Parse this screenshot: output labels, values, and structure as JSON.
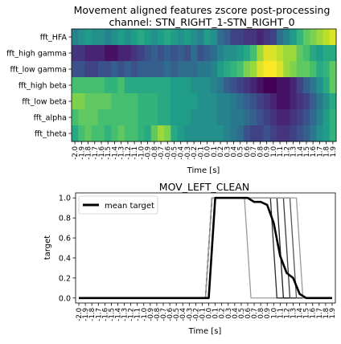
{
  "chart_data": [
    {
      "type": "heatmap",
      "title": "Movement aligned features zscore post-processing",
      "subtitle": "channel: STN_RIGHT_1-STN_RIGHT_0",
      "xlabel": "Time [s]",
      "ylabel": "",
      "rows": [
        "fft_HFA",
        "fft_high gamma",
        "fft_low gamma",
        "fft_high beta",
        "fft_low beta",
        "fft_alpha",
        "fft_theta"
      ],
      "x": [
        -2.0,
        -1.9,
        -1.8,
        -1.7,
        -1.6,
        -1.5,
        -1.4,
        -1.3,
        -1.2,
        -1.1,
        -1.0,
        -0.9,
        -0.8,
        -0.7,
        -0.6,
        -0.5,
        -0.4,
        -0.3,
        -0.2,
        -0.1,
        0.0,
        0.1,
        0.2,
        0.3,
        0.4,
        0.5,
        0.6,
        0.7,
        0.8,
        0.9,
        1.0,
        1.1,
        1.2,
        1.3,
        1.4,
        1.5,
        1.6,
        1.7,
        1.8,
        1.9
      ],
      "colormap": "viridis",
      "colorscale": [
        "#440154",
        "#482878",
        "#3e4989",
        "#31688e",
        "#26828e",
        "#1f9e89",
        "#35b779",
        "#6ece58",
        "#b5de2b",
        "#fde725"
      ],
      "values": [
        [
          0.45,
          0.5,
          0.55,
          0.5,
          0.5,
          0.45,
          0.5,
          0.55,
          0.5,
          0.55,
          0.6,
          0.55,
          0.5,
          0.55,
          0.6,
          0.55,
          0.5,
          0.55,
          0.5,
          0.45,
          0.55,
          0.5,
          0.35,
          0.3,
          0.2,
          0.2,
          0.15,
          0.15,
          0.1,
          0.15,
          0.2,
          0.35,
          0.45,
          0.55,
          0.65,
          0.75,
          0.8,
          0.85,
          0.9,
          0.95
        ],
        [
          0.15,
          0.15,
          0.1,
          0.1,
          0.1,
          0.05,
          0.05,
          0.1,
          0.1,
          0.15,
          0.2,
          0.25,
          0.3,
          0.25,
          0.3,
          0.25,
          0.3,
          0.25,
          0.35,
          0.25,
          0.3,
          0.35,
          0.45,
          0.5,
          0.5,
          0.55,
          0.6,
          0.7,
          0.85,
          0.95,
          0.95,
          0.9,
          0.85,
          0.85,
          0.75,
          0.7,
          0.6,
          0.55,
          0.6,
          0.6
        ],
        [
          0.25,
          0.25,
          0.2,
          0.2,
          0.25,
          0.25,
          0.3,
          0.25,
          0.3,
          0.25,
          0.3,
          0.3,
          0.3,
          0.3,
          0.35,
          0.3,
          0.35,
          0.35,
          0.35,
          0.4,
          0.4,
          0.45,
          0.55,
          0.6,
          0.65,
          0.7,
          0.8,
          0.85,
          0.95,
          1.0,
          1.0,
          0.95,
          0.85,
          0.8,
          0.75,
          0.75,
          0.7,
          0.6,
          0.65,
          0.75
        ],
        [
          0.7,
          0.7,
          0.7,
          0.7,
          0.7,
          0.65,
          0.65,
          0.7,
          0.6,
          0.6,
          0.6,
          0.6,
          0.6,
          0.6,
          0.6,
          0.55,
          0.55,
          0.55,
          0.5,
          0.5,
          0.5,
          0.45,
          0.4,
          0.3,
          0.25,
          0.2,
          0.15,
          0.1,
          0.05,
          0.0,
          0.0,
          0.05,
          0.05,
          0.1,
          0.2,
          0.3,
          0.4,
          0.5,
          0.6,
          0.75
        ],
        [
          0.8,
          0.8,
          0.75,
          0.75,
          0.75,
          0.75,
          0.7,
          0.7,
          0.7,
          0.7,
          0.65,
          0.65,
          0.65,
          0.6,
          0.6,
          0.55,
          0.55,
          0.55,
          0.55,
          0.5,
          0.5,
          0.5,
          0.45,
          0.45,
          0.4,
          0.35,
          0.3,
          0.25,
          0.2,
          0.15,
          0.1,
          0.05,
          0.05,
          0.1,
          0.15,
          0.2,
          0.3,
          0.4,
          0.5,
          0.6
        ],
        [
          0.7,
          0.75,
          0.75,
          0.75,
          0.7,
          0.7,
          0.7,
          0.7,
          0.7,
          0.7,
          0.65,
          0.65,
          0.65,
          0.6,
          0.6,
          0.55,
          0.55,
          0.55,
          0.5,
          0.5,
          0.5,
          0.5,
          0.45,
          0.45,
          0.4,
          0.4,
          0.35,
          0.3,
          0.25,
          0.2,
          0.15,
          0.1,
          0.1,
          0.15,
          0.2,
          0.25,
          0.35,
          0.45,
          0.55,
          0.65
        ],
        [
          0.6,
          0.7,
          0.75,
          0.7,
          0.7,
          0.65,
          0.7,
          0.75,
          0.7,
          0.7,
          0.65,
          0.6,
          0.75,
          0.85,
          0.8,
          0.6,
          0.55,
          0.5,
          0.5,
          0.5,
          0.5,
          0.5,
          0.5,
          0.45,
          0.4,
          0.35,
          0.25,
          0.2,
          0.2,
          0.25,
          0.2,
          0.15,
          0.15,
          0.2,
          0.25,
          0.3,
          0.4,
          0.5,
          0.55,
          0.65
        ]
      ]
    },
    {
      "type": "line",
      "title": "MOV_LEFT_CLEAN",
      "xlabel": "Time [s]",
      "ylabel": "target",
      "x": [
        -2.0,
        -1.9,
        -1.8,
        -1.7,
        -1.6,
        -1.5,
        -1.4,
        -1.3,
        -1.2,
        -1.1,
        -1.0,
        -0.9,
        -0.8,
        -0.7,
        -0.6,
        -0.5,
        -0.4,
        -0.3,
        -0.2,
        -0.1,
        0.0,
        0.1,
        0.2,
        0.3,
        0.4,
        0.5,
        0.6,
        0.7,
        0.8,
        0.9,
        1.0,
        1.1,
        1.2,
        1.3,
        1.4,
        1.5,
        1.6,
        1.7,
        1.8,
        1.9
      ],
      "xlim": [
        -2.05,
        1.95
      ],
      "ylim": [
        -0.05,
        1.05
      ],
      "yticks": [
        0.0,
        0.2,
        0.4,
        0.6,
        0.8,
        1.0
      ],
      "legend": "upper left",
      "legend_entries": [
        "mean target"
      ],
      "grid": false,
      "background_traces": [
        {
          "end": 0.65,
          "color": "#9a9a9a"
        },
        {
          "end": 1.05,
          "color": "#2a2a2a"
        },
        {
          "end": 1.15,
          "color": "#1a1a1a"
        },
        {
          "end": 1.25,
          "color": "#3a3a3a"
        },
        {
          "end": 1.35,
          "color": "#555555"
        },
        {
          "end": 1.45,
          "color": "#9a9a9a"
        }
      ],
      "trace_onset": 0.05,
      "series": [
        {
          "name": "mean target",
          "color": "#000000",
          "values": [
            0,
            0,
            0,
            0,
            0,
            0,
            0,
            0,
            0,
            0,
            0,
            0,
            0,
            0,
            0,
            0,
            0,
            0,
            0,
            0,
            0,
            1,
            1,
            1,
            1,
            1,
            1,
            0.96,
            0.96,
            0.93,
            0.75,
            0.42,
            0.25,
            0.2,
            0.04,
            0,
            0,
            0,
            0,
            0
          ]
        }
      ]
    }
  ]
}
